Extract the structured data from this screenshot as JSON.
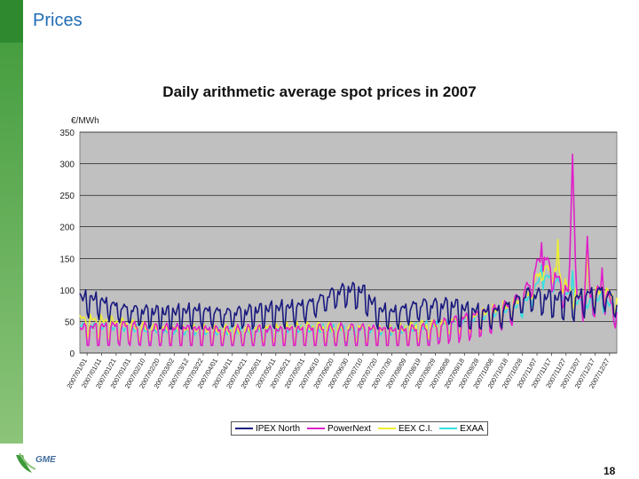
{
  "slide": {
    "title": "Prices",
    "page_number": "18"
  },
  "logo": {
    "text": "GME"
  },
  "chart_data": {
    "type": "line",
    "title": "Daily arithmetic average spot prices in 2007",
    "ylabel": "€/MWh",
    "xlabel": "",
    "ylim": [
      0,
      350
    ],
    "yticks": [
      0,
      50,
      100,
      150,
      200,
      250,
      300,
      350
    ],
    "grid": true,
    "legend_position": "bottom",
    "x_tick_labels": [
      "2007/01/01",
      "2007/01/11",
      "2007/01/21",
      "2007/01/31",
      "2007/02/10",
      "2007/02/20",
      "2007/03/02",
      "2007/03/12",
      "2007/03/22",
      "2007/04/01",
      "2007/04/11",
      "2007/04/21",
      "2007/05/01",
      "2007/05/11",
      "2007/05/21",
      "2007/05/31",
      "2007/06/10",
      "2007/06/20",
      "2007/06/30",
      "2007/07/10",
      "2007/07/20",
      "2007/07/30",
      "2007/08/09",
      "2007/08/19",
      "2007/08/29",
      "2007/09/08",
      "2007/09/18",
      "2007/09/28",
      "2007/10/08",
      "2007/10/18",
      "2007/10/28",
      "2007/11/07",
      "2007/11/17",
      "2007/11/27",
      "2007/12/07",
      "2007/12/17",
      "2007/12/27"
    ],
    "series": [
      {
        "name": "IPEX North",
        "color": "#1a1a80",
        "base": [
          82,
          80,
          72,
          65,
          62,
          60,
          58,
          60,
          62,
          60,
          58,
          60,
          62,
          64,
          66,
          70,
          78,
          90,
          96,
          92,
          62,
          58,
          66,
          72,
          70,
          70,
          62,
          58,
          60,
          72,
          88,
          84,
          80,
          78,
          86,
          92,
          75
        ],
        "amp": 22,
        "min": 38
      },
      {
        "name": "PowerNext",
        "color": "#e020c8",
        "base": [
          30,
          32,
          34,
          35,
          32,
          30,
          30,
          30,
          28,
          28,
          26,
          28,
          28,
          26,
          28,
          28,
          30,
          30,
          30,
          30,
          28,
          26,
          28,
          30,
          36,
          42,
          48,
          55,
          62,
          70,
          95,
          150,
          110,
          80,
          75,
          95,
          60
        ],
        "amp": 20,
        "min": 12,
        "spikes": [
          [
            31,
            175
          ],
          [
            33,
            315
          ],
          [
            34,
            185
          ],
          [
            35,
            135
          ],
          [
            45,
            145
          ],
          [
            44,
            120
          ]
        ]
      },
      {
        "name": "EEX C.I.",
        "color": "#f0ee30",
        "base": [
          48,
          46,
          44,
          40,
          36,
          34,
          32,
          30,
          30,
          30,
          30,
          30,
          32,
          34,
          34,
          34,
          34,
          34,
          34,
          34,
          30,
          30,
          34,
          38,
          40,
          46,
          50,
          56,
          64,
          72,
          88,
          130,
          125,
          90,
          80,
          95,
          78
        ],
        "amp": 18,
        "min": 16,
        "spikes": [
          [
            32,
            180
          ],
          [
            34,
            160
          ],
          [
            44,
            120
          ]
        ]
      },
      {
        "name": "EXAA",
        "color": "#35e0e0",
        "base": [
          40,
          38,
          36,
          34,
          32,
          30,
          28,
          28,
          28,
          28,
          28,
          28,
          30,
          32,
          32,
          32,
          32,
          32,
          32,
          32,
          28,
          28,
          32,
          36,
          38,
          44,
          48,
          52,
          58,
          66,
          80,
          118,
          110,
          80,
          70,
          85,
          60
        ],
        "amp": 16,
        "min": 14,
        "spikes": [
          [
            31,
            140
          ],
          [
            33,
            130
          ],
          [
            44,
            110
          ]
        ]
      }
    ]
  }
}
